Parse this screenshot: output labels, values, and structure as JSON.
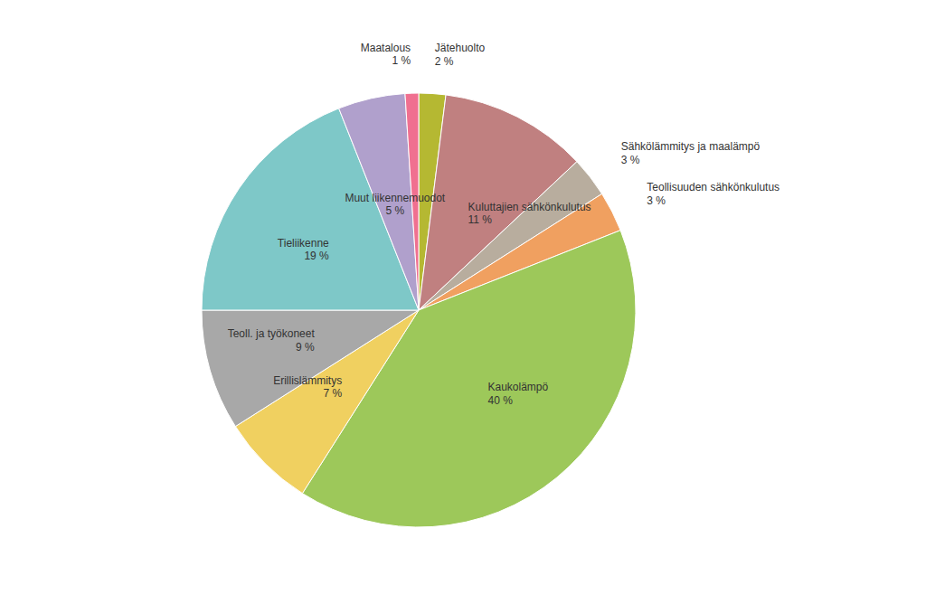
{
  "chart_data": {
    "type": "pie",
    "categories": [
      "Jätehuolto",
      "Kuluttajien sähkönkulutus",
      "Sähkölämmitys ja maalämpö",
      "Teollisuuden sähkönkulutus",
      "Kaukolämpö",
      "Erillislämmitys",
      "Teoll. ja työkoneet",
      "Tieliikenne",
      "Muut liikennemuodot",
      "Maatalous"
    ],
    "values": [
      2,
      11,
      3,
      3,
      40,
      7,
      9,
      19,
      5,
      1
    ],
    "value_labels": [
      "2 %",
      "11 %",
      "3 %",
      "3 %",
      "40 %",
      "7 %",
      "9 %",
      "19 %",
      "5 %",
      "1 %"
    ],
    "colors": [
      "#b5b832",
      "#c08080",
      "#b8ad9e",
      "#f0a060",
      "#9dc85a",
      "#f0d060",
      "#a8a8a8",
      "#7ec8c8",
      "#b0a0cc",
      "#f07090"
    ]
  }
}
